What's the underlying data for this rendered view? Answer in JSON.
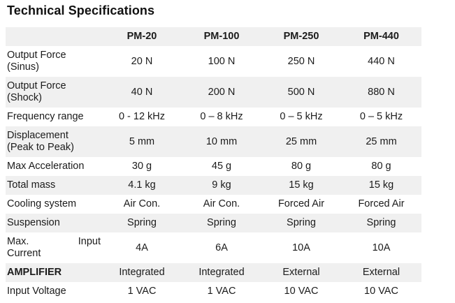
{
  "page": {
    "title": "Technical Specifications"
  },
  "table": {
    "columns": [
      "",
      "PM-20",
      "PM-100",
      "PM-250",
      "PM-440"
    ],
    "rows": [
      {
        "label_lines": [
          "Output Force",
          "(Sinus)"
        ],
        "values": [
          "20 N",
          "100 N",
          "250 N",
          "440 N"
        ],
        "shaded": false
      },
      {
        "label_lines": [
          "Output Force",
          "(Shock)"
        ],
        "values": [
          "40 N",
          "200 N",
          "500 N",
          "880 N"
        ],
        "shaded": true
      },
      {
        "label_lines": [
          "Frequency range"
        ],
        "values": [
          "0 - 12 kHz",
          "0 – 8 kHz",
          "0 – 5 kHz",
          "0 – 5 kHz"
        ],
        "shaded": false
      },
      {
        "label_lines": [
          "Displacement",
          "(Peak to Peak)"
        ],
        "values": [
          "5 mm",
          "10 mm",
          "25 mm",
          "25 mm"
        ],
        "shaded": true
      },
      {
        "label_lines": [
          "Max Acceleration"
        ],
        "values": [
          "30 g",
          "45 g",
          "80 g",
          "80 g"
        ],
        "shaded": false
      },
      {
        "label_lines": [
          "Total mass"
        ],
        "values": [
          "4.1 kg",
          "9 kg",
          "15 kg",
          "15 kg"
        ],
        "shaded": true
      },
      {
        "label_lines": [
          "Cooling system"
        ],
        "values": [
          "Air Con.",
          "Air Con.",
          "Forced Air",
          "Forced Air"
        ],
        "shaded": false
      },
      {
        "label_lines": [
          "Suspension"
        ],
        "values": [
          "Spring",
          "Spring",
          "Spring",
          "Spring"
        ],
        "shaded": true
      },
      {
        "label_lines": [
          [
            "Max.",
            "Input"
          ],
          "Current"
        ],
        "values": [
          "4A",
          "6A",
          "10A",
          "10A"
        ],
        "shaded": false
      },
      {
        "label_lines": [
          "AMPLIFIER"
        ],
        "values": [
          "Integrated",
          "Integrated",
          "External",
          "External"
        ],
        "shaded": true,
        "label_bold": true
      },
      {
        "label_lines": [
          "Input Voltage"
        ],
        "values": [
          "1 VAC",
          "1 VAC",
          "10 VAC",
          "10 VAC"
        ],
        "shaded": false
      }
    ]
  },
  "colors": {
    "background": "#ffffff",
    "shaded_row": "#f0f0f0",
    "text": "#1b1b1b"
  }
}
